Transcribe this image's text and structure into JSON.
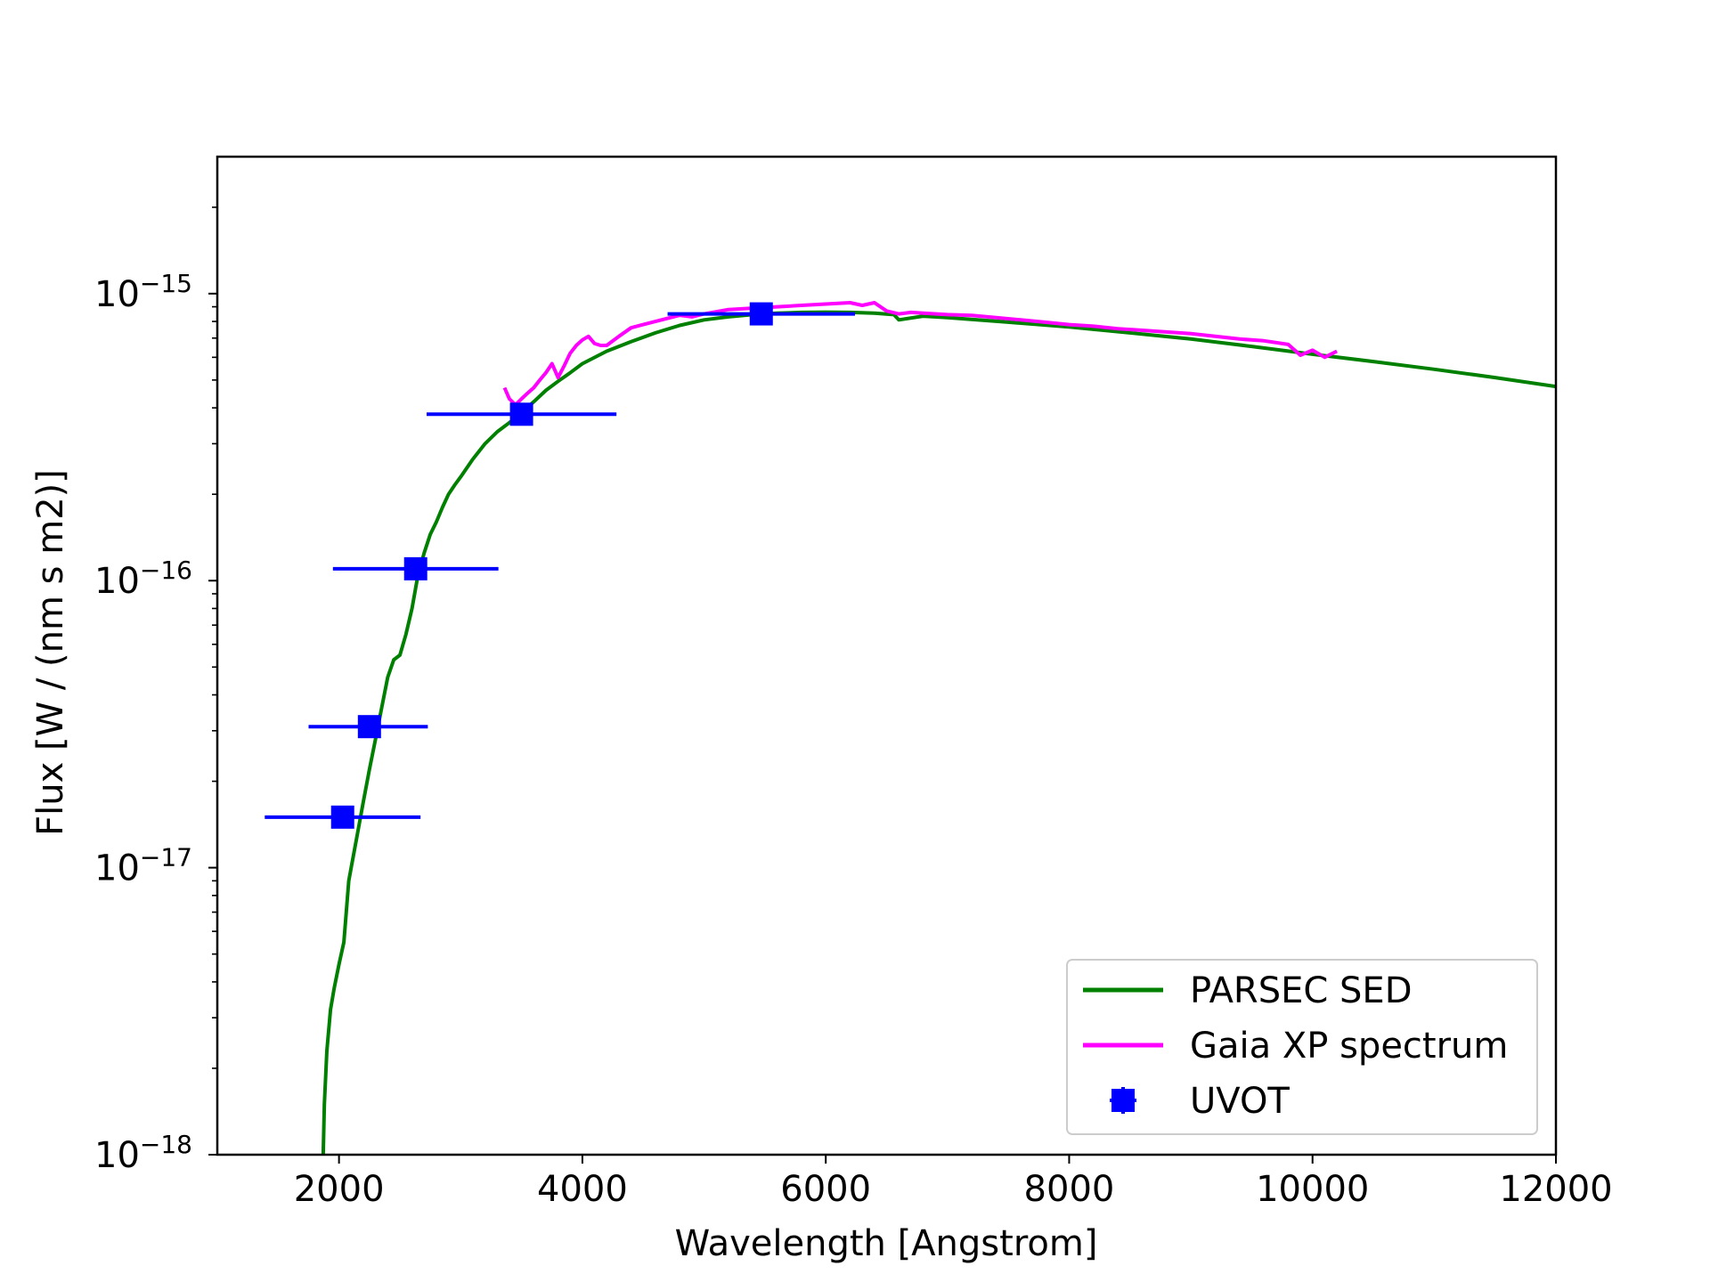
{
  "chart_data": {
    "type": "line",
    "title": "",
    "xlabel": "Wavelength [Angstrom]",
    "ylabel": "Flux  [W / (nm s m2)]",
    "xscale": "linear",
    "yscale": "log",
    "xlim": [
      1000,
      12000
    ],
    "ylim": [
      1e-18,
      3e-15
    ],
    "grid": false,
    "legend_position": "lower-right",
    "x_ticks": [
      2000,
      4000,
      6000,
      8000,
      10000,
      12000
    ],
    "x_tick_labels": [
      "2000",
      "4000",
      "6000",
      "8000",
      "10000",
      "12000"
    ],
    "y_ticks": [
      1e-18,
      1e-17,
      1e-16,
      1e-15
    ],
    "y_tick_labels": [
      {
        "base": "10",
        "exp": "−18"
      },
      {
        "base": "10",
        "exp": "−17"
      },
      {
        "base": "10",
        "exp": "−16"
      },
      {
        "base": "10",
        "exp": "−15"
      }
    ],
    "series": [
      {
        "name": "PARSEC SED",
        "kind": "line",
        "color": "#008000",
        "x": [
          1870,
          1880,
          1900,
          1930,
          1960,
          2000,
          2040,
          2080,
          2100,
          2150,
          2200,
          2250,
          2300,
          2350,
          2400,
          2450,
          2500,
          2550,
          2600,
          2650,
          2700,
          2750,
          2800,
          2850,
          2900,
          2950,
          3000,
          3100,
          3200,
          3300,
          3400,
          3500,
          3600,
          3700,
          3800,
          3900,
          4000,
          4200,
          4400,
          4600,
          4800,
          5000,
          5200,
          5400,
          5600,
          5800,
          6000,
          6200,
          6400,
          6560,
          6600,
          6800,
          7000,
          7500,
          8000,
          8500,
          9000,
          9500,
          10000,
          10500,
          11000,
          11500,
          12000
        ],
        "y": [
          1e-18,
          1.5e-18,
          2.3e-18,
          3.2e-18,
          3.8e-18,
          4.6e-18,
          5.5e-18,
          9e-18,
          1e-17,
          1.3e-17,
          1.7e-17,
          2.2e-17,
          2.8e-17,
          3.6e-17,
          4.6e-17,
          5.3e-17,
          5.5e-17,
          6.5e-17,
          8e-17,
          1.05e-16,
          1.25e-16,
          1.45e-16,
          1.6e-16,
          1.8e-16,
          2e-16,
          2.15e-16,
          2.3e-16,
          2.65e-16,
          3e-16,
          3.3e-16,
          3.55e-16,
          3.85e-16,
          4.2e-16,
          4.6e-16,
          4.95e-16,
          5.3e-16,
          5.7e-16,
          6.3e-16,
          6.8e-16,
          7.3e-16,
          7.75e-16,
          8.1e-16,
          8.3e-16,
          8.45e-16,
          8.55e-16,
          8.6e-16,
          8.62e-16,
          8.6e-16,
          8.55e-16,
          8.45e-16,
          8.1e-16,
          8.35e-16,
          8.25e-16,
          7.95e-16,
          7.65e-16,
          7.3e-16,
          6.95e-16,
          6.55e-16,
          6.15e-16,
          5.8e-16,
          5.45e-16,
          5.1e-16,
          4.75e-16
        ]
      },
      {
        "name": "Gaia XP spectrum",
        "kind": "line",
        "color": "#ff00ff",
        "x": [
          3360,
          3400,
          3450,
          3500,
          3550,
          3600,
          3650,
          3700,
          3750,
          3800,
          3850,
          3900,
          3950,
          4000,
          4050,
          4100,
          4150,
          4200,
          4300,
          4400,
          4500,
          4600,
          4700,
          4800,
          4900,
          5000,
          5200,
          5400,
          5600,
          5800,
          6000,
          6200,
          6300,
          6400,
          6500,
          6600,
          6700,
          6800,
          7000,
          7200,
          7400,
          7600,
          7800,
          8000,
          8200,
          8400,
          8600,
          8800,
          9000,
          9200,
          9400,
          9600,
          9800,
          9900,
          10000,
          10100,
          10200
        ],
        "y": [
          4.7e-16,
          4.3e-16,
          4.1e-16,
          4.3e-16,
          4.5e-16,
          4.7e-16,
          5e-16,
          5.3e-16,
          5.7e-16,
          5.1e-16,
          5.6e-16,
          6.2e-16,
          6.6e-16,
          6.9e-16,
          7.1e-16,
          6.7e-16,
          6.6e-16,
          6.6e-16,
          7.1e-16,
          7.6e-16,
          7.8e-16,
          8e-16,
          8.2e-16,
          8.4e-16,
          8.3e-16,
          8.5e-16,
          8.8e-16,
          8.9e-16,
          9e-16,
          9.1e-16,
          9.2e-16,
          9.3e-16,
          9.1e-16,
          9.3e-16,
          8.7e-16,
          8.5e-16,
          8.6e-16,
          8.55e-16,
          8.45e-16,
          8.4e-16,
          8.25e-16,
          8.1e-16,
          7.95e-16,
          7.8e-16,
          7.7e-16,
          7.55e-16,
          7.45e-16,
          7.35e-16,
          7.25e-16,
          7.1e-16,
          6.95e-16,
          6.85e-16,
          6.65e-16,
          6.1e-16,
          6.35e-16,
          6e-16,
          6.3e-16
        ]
      },
      {
        "name": "UVOT",
        "kind": "errorbar",
        "color": "#0000ff",
        "x": [
          2030,
          2250,
          2630,
          3500,
          5470
        ],
        "y": [
          1.5e-17,
          3.1e-17,
          1.1e-16,
          3.8e-16,
          8.5e-16
        ],
        "xerr_low": [
          640,
          500,
          680,
          780,
          770
        ],
        "xerr_high": [
          640,
          480,
          680,
          780,
          770
        ],
        "yerr": [
          1.3e-18,
          1e-18,
          5e-18,
          1e-17,
          2e-17
        ]
      }
    ]
  }
}
